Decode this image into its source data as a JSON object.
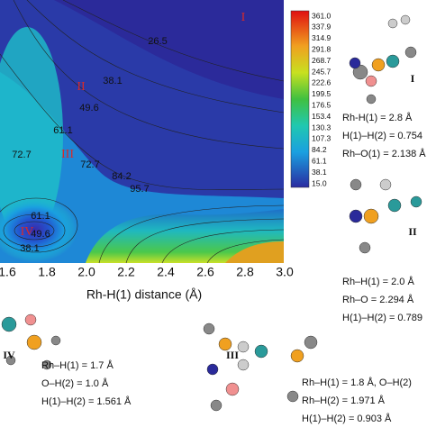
{
  "plot": {
    "x_axis_title": "Rh-H(1) distance (Å)",
    "x_ticks": [
      "1.6",
      "1.8",
      "2.0",
      "2.2",
      "2.4",
      "2.6",
      "2.8",
      "3.0"
    ],
    "contour_labels": [
      "26.5",
      "38.1",
      "49.6",
      "61.1",
      "72.7",
      "72.7",
      "84.2",
      "95.7",
      "61.1",
      "49.6",
      "38.1"
    ],
    "region_labels": [
      "I",
      "II",
      "III",
      "IV"
    ],
    "colorbar_labels": [
      "361.0",
      "337.9",
      "314.9",
      "291.8",
      "268.7",
      "245.7",
      "222.6",
      "199.5",
      "176.5",
      "153.4",
      "130.3",
      "107.3",
      "84.2",
      "61.1",
      "38.1",
      "15.0"
    ]
  },
  "structures": [
    {
      "label": "I",
      "lines": [
        "Rh-H(1) = 2.8 Å",
        "H(1)–H(2) = 0.754",
        "Rh–O(1) = 2.138 Å"
      ]
    },
    {
      "label": "II",
      "lines": [
        "Rh–H(1) = 2.0 Å",
        "Rh–O = 2.294 Å",
        "H(1)–H(2) = 0.789"
      ]
    },
    {
      "label": "IV",
      "lines": [
        "Rh–H(1) = 1.7 Å",
        "O–H(2) = 1.0 Å",
        "H(1)–H(2) = 1.561 Å"
      ]
    },
    {
      "label": "III",
      "lines": [
        "Rh–H(1) = 1.8 Å, O–H(2)",
        "Rh–H(2) = 1.971 Å",
        "H(1)–H(2) = 0.903 Å"
      ]
    }
  ]
}
